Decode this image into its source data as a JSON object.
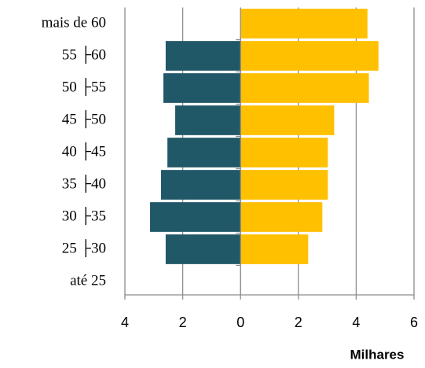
{
  "chart_data": {
    "type": "bar",
    "orientation": "horizontal",
    "x_label": "Milhares",
    "categories": [
      "mais de 60",
      "55 ├60",
      "50 ├55",
      "45 ├50",
      "40 ├45",
      "35 ├40",
      "30 ├35",
      "25 ├30",
      "até 25"
    ],
    "series": [
      {
        "color": "#215868",
        "values": [
          null,
          -2.59,
          -2.67,
          -2.26,
          -2.53,
          -2.75,
          -3.13,
          -2.59,
          null
        ]
      },
      {
        "color": "#ffc000",
        "values": [
          4.39,
          4.77,
          4.44,
          3.24,
          3.02,
          3.02,
          2.83,
          2.34,
          null
        ]
      }
    ],
    "xlim": [
      -4,
      6
    ],
    "xticks": [
      {
        "value": -4,
        "label": "4"
      },
      {
        "value": -2,
        "label": "2"
      },
      0,
      2,
      4,
      6
    ],
    "grid": true
  }
}
